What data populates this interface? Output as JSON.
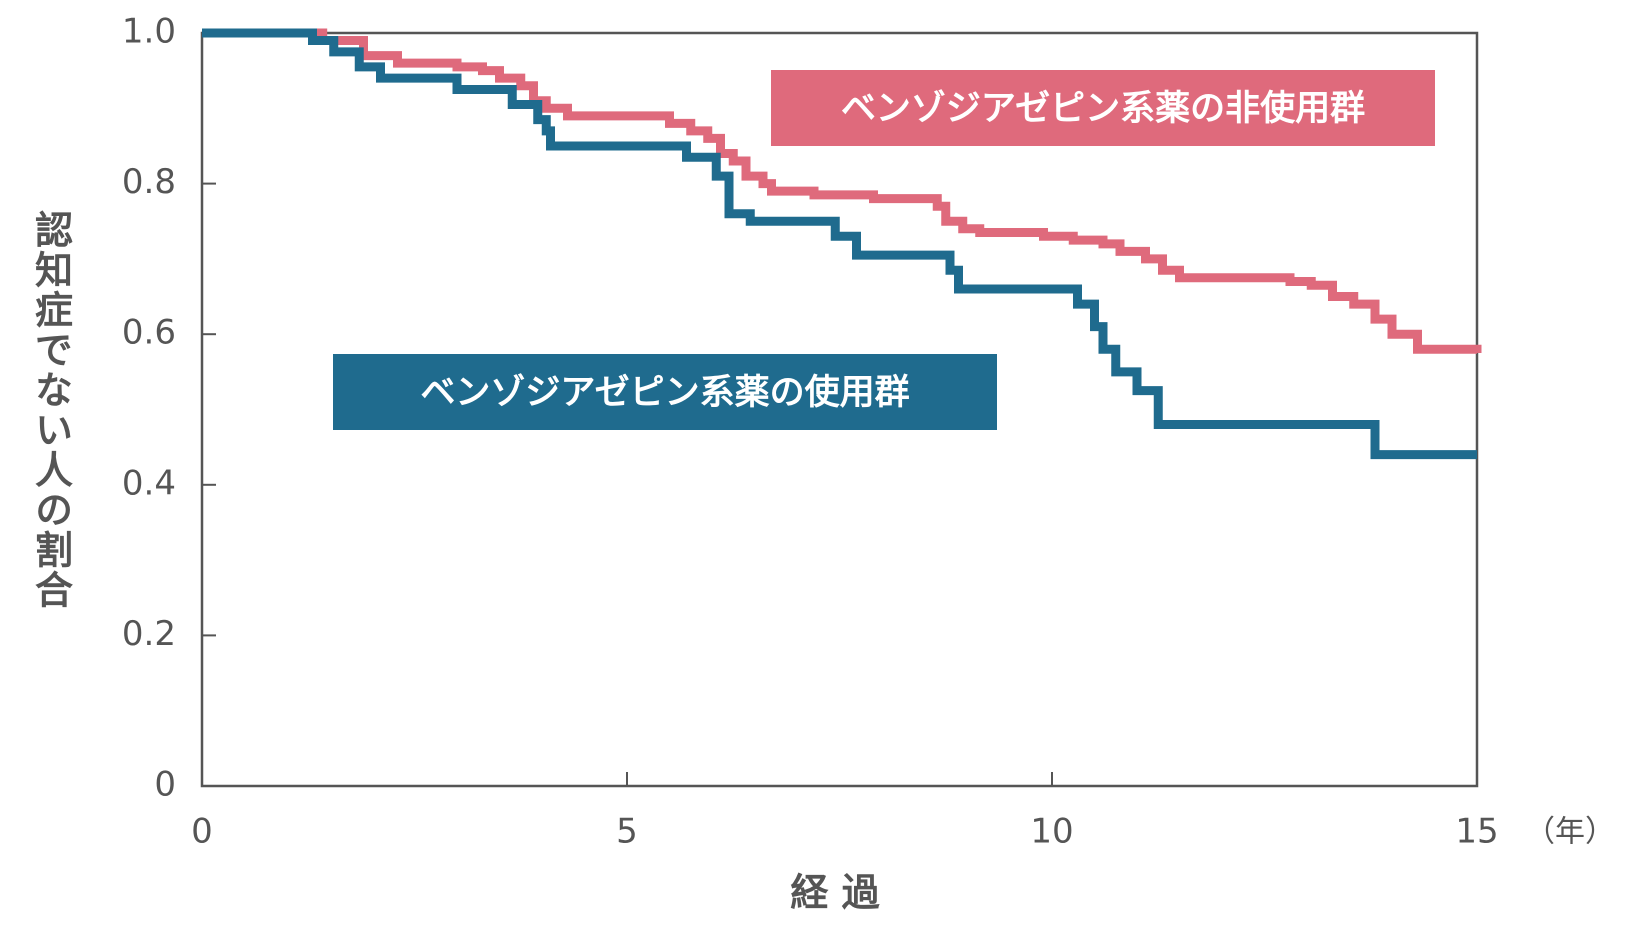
{
  "chart_data": {
    "type": "step",
    "x_label": "経 過",
    "x_unit": "（年）",
    "y_label": "認知症でない人の割合",
    "xlim": [
      0,
      15
    ],
    "xticks": [
      0,
      5,
      10,
      15
    ],
    "ylim": [
      0,
      1
    ],
    "yticks": [
      0,
      0.2,
      0.4,
      0.6,
      0.8,
      {
        "value": 1,
        "label": "1.0"
      }
    ],
    "series": [
      {
        "name": "ベンゾジアゼピン系薬の非使用群",
        "color": "#df6a7c",
        "x": [
          0,
          1.42,
          1.9,
          2.3,
          3.0,
          3.3,
          3.5,
          3.75,
          3.9,
          4.05,
          4.3,
          5.5,
          5.75,
          5.95,
          6.1,
          6.25,
          6.4,
          6.6,
          6.7,
          7.2,
          7.9,
          8.65,
          8.75,
          8.95,
          9.15,
          9.9,
          10.25,
          10.6,
          10.8,
          11.1,
          11.3,
          11.5,
          12.8,
          13.05,
          13.3,
          13.55,
          13.8,
          14.0,
          14.3,
          15
        ],
        "values": [
          1.0,
          0.99,
          0.97,
          0.96,
          0.955,
          0.95,
          0.94,
          0.93,
          0.91,
          0.9,
          0.89,
          0.88,
          0.87,
          0.86,
          0.84,
          0.83,
          0.81,
          0.8,
          0.79,
          0.785,
          0.78,
          0.77,
          0.75,
          0.74,
          0.735,
          0.73,
          0.725,
          0.72,
          0.71,
          0.7,
          0.685,
          0.675,
          0.67,
          0.665,
          0.65,
          0.64,
          0.62,
          0.6,
          0.58,
          0.575
        ]
      },
      {
        "name": "ベンゾジアゼピン系薬の使用群",
        "color": "#1f6b8e",
        "x": [
          0,
          1.3,
          1.55,
          1.85,
          2.1,
          3.0,
          3.65,
          3.95,
          4.05,
          4.1,
          5.7,
          6.05,
          6.2,
          6.45,
          7.45,
          7.7,
          8.8,
          8.9,
          10.3,
          10.5,
          10.6,
          10.75,
          11.0,
          11.25,
          13.8,
          15
        ],
        "values": [
          1.0,
          0.99,
          0.975,
          0.955,
          0.94,
          0.925,
          0.905,
          0.885,
          0.87,
          0.85,
          0.835,
          0.81,
          0.76,
          0.75,
          0.73,
          0.705,
          0.685,
          0.66,
          0.64,
          0.61,
          0.58,
          0.55,
          0.525,
          0.48,
          0.44,
          0.44
        ]
      }
    ]
  }
}
